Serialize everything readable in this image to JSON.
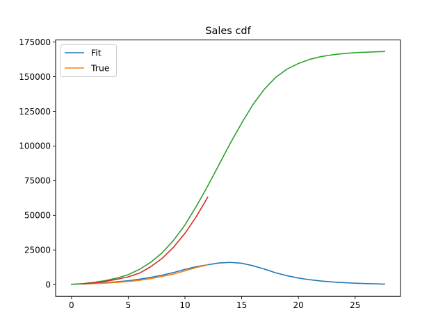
{
  "chart_data": {
    "type": "line",
    "title": "Sales cdf",
    "xlabel": "",
    "ylabel": "",
    "xlim": [
      -1.4,
      29.0
    ],
    "ylim": [
      -8500,
      176500
    ],
    "grid": false,
    "legend_placement": "upper-left",
    "x_ticks": [
      0,
      5,
      10,
      15,
      20,
      25
    ],
    "y_ticks": [
      0,
      25000,
      50000,
      75000,
      100000,
      125000,
      150000,
      175000
    ],
    "legend": [
      {
        "label": "Fit",
        "color": "#1f77b4"
      },
      {
        "label": "True",
        "color": "#ff7f0e"
      }
    ],
    "series": [
      {
        "name": "Fit",
        "color": "#1f77b4",
        "x": [
          0,
          1,
          2,
          3,
          4,
          5,
          6,
          7,
          8,
          9,
          10,
          11,
          12,
          13,
          14,
          15,
          16,
          17,
          18,
          19,
          20,
          21,
          22,
          23,
          24,
          25,
          26,
          27,
          27.6
        ],
        "values": [
          200,
          500,
          900,
          1400,
          2000,
          2800,
          3900,
          5200,
          6800,
          8700,
          11000,
          12900,
          14300,
          15600,
          16000,
          15400,
          13600,
          11200,
          8500,
          6400,
          4700,
          3500,
          2600,
          1900,
          1400,
          1000,
          700,
          500,
          350
        ]
      },
      {
        "name": "True",
        "color": "#ff7f0e",
        "x": [
          1,
          2,
          3,
          4,
          5,
          6,
          7,
          8,
          9,
          10,
          11,
          12
        ],
        "values": [
          400,
          700,
          1100,
          1600,
          2200,
          3100,
          4300,
          5900,
          7600,
          9900,
          12300,
          14200
        ]
      },
      {
        "color": "#2ca02c",
        "x": [
          0,
          1,
          2,
          3,
          4,
          5,
          6,
          7,
          8,
          9,
          10,
          11,
          12,
          13,
          14,
          15,
          16,
          17,
          18,
          19,
          20,
          21,
          22,
          23,
          24,
          25,
          26,
          27,
          27.6
        ],
        "values": [
          200,
          700,
          1600,
          2900,
          4700,
          7200,
          11000,
          16200,
          23000,
          32000,
          43000,
          56500,
          71000,
          86500,
          102000,
          116500,
          130000,
          141000,
          149500,
          155500,
          159500,
          162500,
          164500,
          165800,
          166700,
          167300,
          167700,
          168000,
          168200
        ]
      },
      {
        "color": "#d62728",
        "x": [
          1,
          2,
          3,
          4,
          5,
          6,
          7,
          8,
          9,
          10,
          11,
          12
        ],
        "values": [
          500,
          1200,
          2400,
          3800,
          5600,
          8300,
          13000,
          19000,
          27000,
          37000,
          49000,
          63000
        ]
      }
    ]
  }
}
